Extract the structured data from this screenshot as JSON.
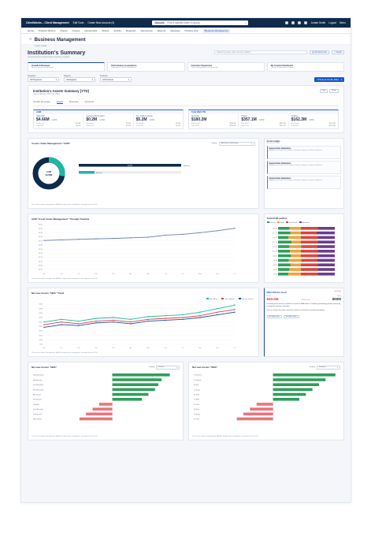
{
  "topbar": {
    "brand": "ClientWorks – Client Management",
    "links": [
      "Edit Tools",
      "Create New Account (3)"
    ],
    "search_scope": "Account",
    "search_placeholder": "Find a specific client or group",
    "user": "Jordan Smith",
    "logout": "Logout",
    "menu": "Menu"
  },
  "nav": {
    "items": [
      "Home",
      "Practice Metrics",
      "Clients",
      "Groups",
      "Households",
      "Orders",
      "Activity",
      "Requests",
      "Documents",
      "Reports",
      "Meetings",
      "Practice Hub",
      "Business Management"
    ],
    "active_index": 12
  },
  "page": {
    "title": "Business Management",
    "subtitle": "Insight details"
  },
  "summary": {
    "title": "Institution's Summary",
    "subtitle": "Comprehensive Performance and Key Insights",
    "search_placeholder": "Search by group, client, account, advisor",
    "btn_my_documents": "My documents",
    "btn_export": "Export"
  },
  "tabcards": [
    {
      "title": "Growth & Revenue",
      "sub": "Assets, Revenue & Accounts"
    },
    {
      "title": "Performance & operations",
      "sub": "Operations, Goals & Compliance"
    },
    {
      "title": "Customer Experience",
      "sub": "Client Demographics & Satisfaction"
    },
    {
      "title": "My Custom Dashboard",
      "sub": "Custom Dashboards & Reports"
    }
  ],
  "filters": [
    {
      "label": "Programs",
      "value": "All Programs"
    },
    {
      "label": "Regions",
      "value": "All Regions"
    },
    {
      "label": "Products",
      "value": "All Products"
    }
  ],
  "period": "YTD as of Jun 06, 2024",
  "assets": {
    "title": "Institution's Assets Summary [YTD]",
    "subtitle": "Year to date as of Nov 20, 2024",
    "btn_print": "Print",
    "btn_share": "Share",
    "tabs": [
      "Growth Summary",
      "Assets",
      "Revenue",
      "Accounts"
    ],
    "active_tab": 1
  },
  "kpi_aum": {
    "heading": "AUM",
    "items": [
      {
        "name": "Total AUM",
        "value": "$4.66M",
        "delta": "1.03%",
        "dir": "up",
        "b1": "Benchmark",
        "b1v": "$21.8M",
        "b2": "Goal 2024",
        "b2v": "$4.2M"
      },
      {
        "name": "Average AUM by client",
        "value": "$0.2M",
        "delta": "1.03%",
        "dir": "up",
        "b1": "Benchmark",
        "b1v": "$0.3M",
        "b2": "Goal 2024",
        "b2v": "$0.2M"
      },
      {
        "name": "Avg. AUM by advisor",
        "value": "$5.2M",
        "delta": "1.03%",
        "dir": "up",
        "b1": "Benchmark",
        "b1v": "$5.6M",
        "b2": "Goal 2024",
        "b2v": "$5.7M"
      }
    ]
  },
  "kpi_nna": {
    "heading": "Total NNA YTD",
    "items": [
      {
        "name": "Net Flows",
        "value": "$180.2M",
        "delta": "",
        "dir": "up",
        "b1": "Benchmark",
        "b1v": "$280.1M",
        "b2": "Goal 2024",
        "b2v": "$190.2M"
      },
      {
        "name": "Inflows",
        "value": "$357.1M",
        "delta": "2.65%",
        "dir": "up",
        "b1": "Benchmark",
        "b1v": "$380.1M",
        "b2": "Goal 2024",
        "b2v": "$320.1M"
      },
      {
        "name": "Outflows",
        "value": "$162.3M",
        "delta": "2.65%",
        "dir": "up",
        "b1": "Benchmark",
        "b1v": "$170.4M",
        "b2": "Goal 2024",
        "b2v": "$150.2M"
      }
    ]
  },
  "aum_chart": {
    "title": "Assets Under Management \"AUM\"",
    "display_label": "Display",
    "display_value": "Advisory or Brokerage",
    "donut_center": "AUM\n$4.66M",
    "bar_value_label": "$4.2M",
    "bar_track_label": "Advisory",
    "bar_side": "Advisory",
    "footnote": "The assets under management (AUM) compare the competitors' average by over 10%."
  },
  "insights": {
    "title": "Assets Insights",
    "subtitle": "As of Jun 24, 2024",
    "cards": [
      {
        "title": "Opportunities Realization",
        "text": "Realization of 3.03% YoY retention. Strategic changes: consider reallocation.",
        "kind": "red"
      },
      {
        "title": "Opportunities Realization",
        "text": "Realization of 3.03% YoY retention. Strategic changes: consider reallocation.",
        "kind": "green"
      },
      {
        "title": "Opportunities Realization",
        "text": "Realization of 3.03% YoY retention. Strategic changes: consider reallocation.",
        "kind": "green"
      }
    ]
  },
  "timeline": {
    "title": "AUM \"Asset Under Management\" Through Timeline",
    "footnote": "The assets under management (AUM) compare the competitors' average by over 10%.",
    "chart_data": {
      "type": "line",
      "x": [
        "Nov",
        "Dec",
        "Jan",
        "Feb",
        "Mar",
        "Apr",
        "May",
        "Jun",
        "Jul",
        "Aug",
        "Sep",
        "Oct"
      ],
      "series": [
        {
          "values": [
            4.02,
            4.05,
            4.08,
            4.1,
            4.12,
            4.15,
            4.18,
            4.28,
            4.32,
            4.4,
            4.5,
            4.62
          ]
        }
      ],
      "yticks": [
        "$4.8M",
        "$4.6M",
        "$4.4M",
        "$4.2M",
        "$4.0M",
        "$3.8M",
        "$3.6M",
        "$3.4M",
        "$3.2M",
        "$3.0M",
        "$2.8M",
        "$2.6M"
      ],
      "ylim": [
        2.6,
        4.8
      ]
    }
  },
  "outflow": {
    "title": "Total AUM outflow",
    "legend": [
      "Domestic",
      "Equity",
      "Fixed Income",
      "Alternatives"
    ],
    "chart_data": {
      "type": "bar",
      "stacked": true,
      "orientation": "horizontal",
      "categories": [
        "$26.8M",
        "$21.7M",
        "$19.2M",
        "$17.1M",
        "$15.0M",
        "$12.0M",
        "$10.0M",
        "$8.0M",
        "$6.0M",
        "$4.0M",
        "$2.0M"
      ],
      "series": [
        {
          "name": "Domestic",
          "values": [
            20,
            22,
            18,
            24,
            20,
            21,
            23,
            19,
            22,
            20,
            18
          ]
        },
        {
          "name": "Equity",
          "values": [
            20,
            18,
            22,
            16,
            21,
            19,
            17,
            22,
            18,
            20,
            22
          ]
        },
        {
          "name": "Fixed Income",
          "values": [
            30,
            28,
            30,
            30,
            28,
            30,
            30,
            28,
            30,
            30,
            30
          ]
        },
        {
          "name": "Alternatives",
          "values": [
            30,
            32,
            30,
            30,
            31,
            30,
            30,
            31,
            30,
            30,
            30
          ]
        }
      ]
    }
  },
  "nna_trend": {
    "title": "Net new Assets \"NNA\" Trend",
    "legend": [
      "Net inflows",
      "Net outflows",
      "Net new assets"
    ],
    "footnote": "The assets under management (AUM) compare the competitors' average by over 10%.",
    "chart_data": {
      "type": "line",
      "x": [
        "Nov",
        "Dec",
        "Jan",
        "Feb",
        "Mar",
        "Apr",
        "May",
        "Jun",
        "Jul",
        "Aug",
        "Sep",
        "Oct"
      ],
      "series": [
        {
          "name": "Net inflows",
          "values": [
            30,
            33,
            31,
            34,
            35,
            33,
            36,
            37,
            38,
            41,
            45,
            49
          ]
        },
        {
          "name": "Net outflows",
          "values": [
            27,
            30,
            28,
            31,
            32,
            30,
            33,
            34,
            35,
            37,
            41,
            44
          ]
        },
        {
          "name": "Net new assets",
          "values": [
            24,
            27,
            26,
            29,
            30,
            28,
            31,
            32,
            33,
            35,
            38,
            41
          ]
        }
      ],
      "yticks": [
        "$50M",
        "$45M",
        "$40M",
        "$35M",
        "$30M",
        "$25M",
        "$20M",
        "$15M",
        "$10M",
        "$5M"
      ],
      "ylim": [
        5,
        50
      ]
    }
  },
  "nna_goal": {
    "title": "NNA Inflows Goal",
    "tag": "Need Help",
    "actual_label": "Actual",
    "actual": "$40.5M",
    "delta": "-1.05% YTD",
    "target_label": "Target",
    "target": "$50M",
    "text": "Increasing client interest in providers caused the NNA inflows. Considering introducing product positioning in targeted marketing campaigns.",
    "text2": "You can change the product and team's goals to reevaluate the product positioning.",
    "btn1": "Set Inflows Goal",
    "btn2": "Set Inflows Goals"
  },
  "nna_left": {
    "title": "Net new Assets \"NNA\"",
    "display_label": "Display",
    "display_value": "Product",
    "footnote": "The assets under management (AUM) compare the competitors' average by over 10%.",
    "chart_data": {
      "type": "bar",
      "orientation": "horizontal",
      "categories": [
        "Fixed Securities",
        "Fixed Income",
        "Fund Securities",
        "Fixed Securities",
        "Alternatives",
        "Fixed Income",
        "Variable 1",
        "Fund Securities",
        "Fixed Income",
        "Mutual Fund"
      ],
      "values": [
        35,
        30,
        28,
        26,
        22,
        18,
        -8,
        -12,
        -16,
        -20
      ],
      "xlim": [
        -30,
        40
      ]
    }
  },
  "nna_right": {
    "title": "Net new Assets \"NNA\"",
    "display_label": "Display",
    "display_value": "Program",
    "footnote": "The assets under management (AUM) compare the competitors' average by over 10%.",
    "chart_data": {
      "type": "bar",
      "orientation": "horizontal",
      "categories": [
        "S. Simmons",
        "D. Johnson",
        "A. Rich",
        "D. Young",
        "B. Smith",
        "D. Wells",
        "D. Lewis",
        "N. Rush",
        "D. Hacker",
        "B. Oliver"
      ],
      "values": [
        38,
        32,
        28,
        24,
        20,
        16,
        -10,
        -14,
        -18,
        -22
      ],
      "xlim": [
        -30,
        40
      ]
    }
  },
  "colors": {
    "navy": "#0f2a4a",
    "accent": "#1a4db3",
    "teal": "#1fb6a6",
    "green": "#2e9e5a",
    "red": "#d9453c",
    "orange": "#f2a23a",
    "purple": "#6a3d8e"
  }
}
